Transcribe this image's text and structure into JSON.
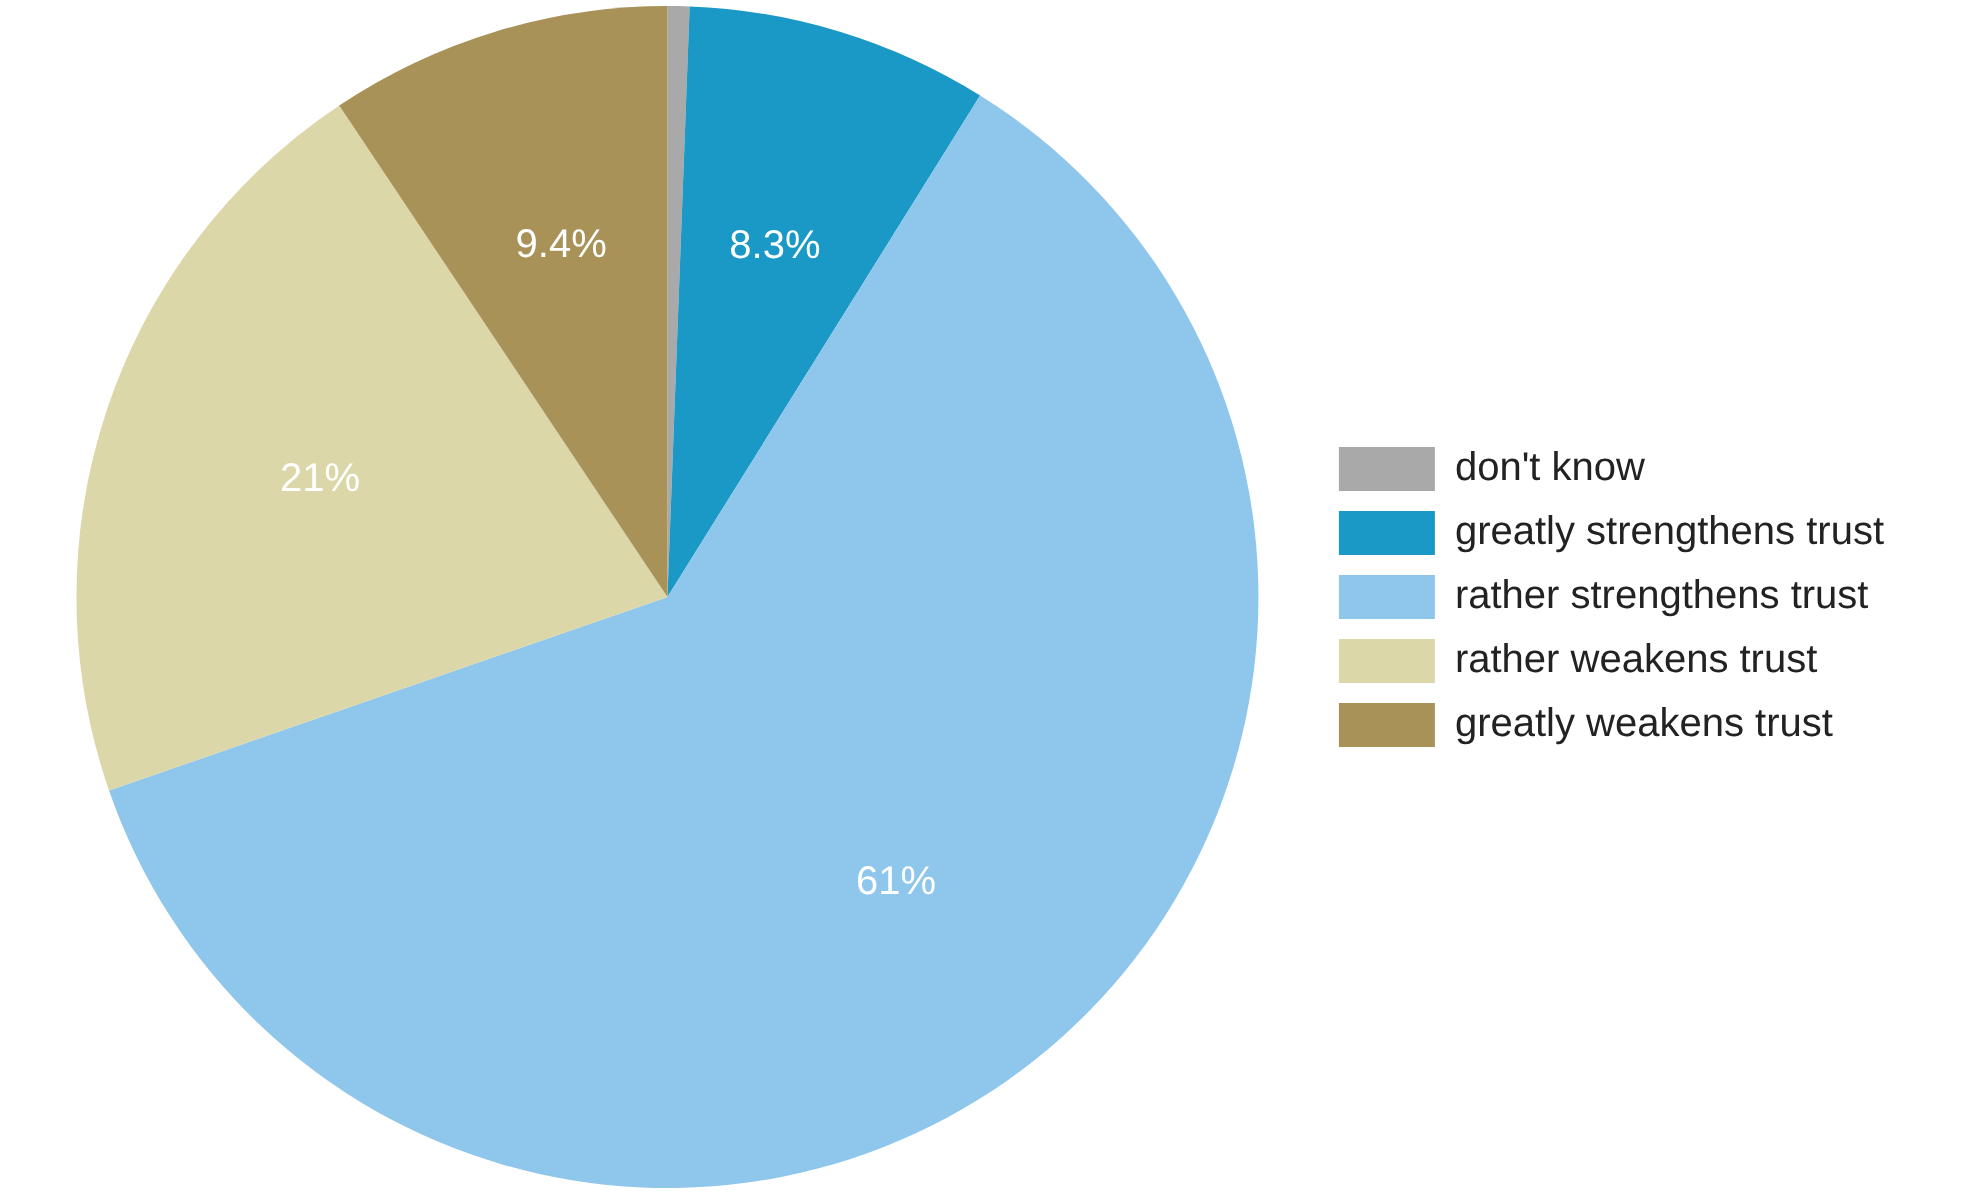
{
  "chart_data": {
    "type": "pie",
    "categories": [
      "don't know",
      "greatly strengthens trust",
      "rather strengthens trust",
      "rather weakens trust",
      "greatly weakens trust"
    ],
    "values": [
      0.6,
      8.3,
      61,
      21,
      9.4
    ],
    "colors": [
      "#a9a9a9",
      "#1a98c6",
      "#8fc6eb",
      "#dcd7a9",
      "#a89258"
    ],
    "value_labels": [
      null,
      "8.3%",
      "61%",
      "21%",
      "9.4%"
    ],
    "legend": "right"
  }
}
